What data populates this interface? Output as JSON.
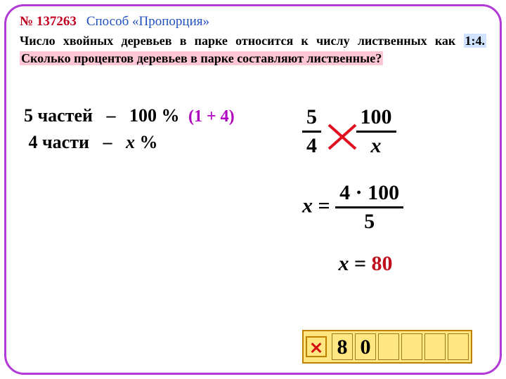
{
  "colors": {
    "frame": "#b23ad6",
    "number": "#c00020",
    "subtitle": "#2050c0",
    "hl_ratio_bg": "#cfe2ff",
    "hl_q_bg": "#ffc7d6",
    "note": "#b000c0",
    "answer_border": "#c08000",
    "answer_bg": "#ffe680",
    "cell_border": "#9a7a20",
    "x_red": "#d01010",
    "text": "#000000",
    "result": "#c01020",
    "cross": "#e01020"
  },
  "fontsize": {
    "header": 19,
    "problem": 18,
    "work": 26,
    "note": 24,
    "math": 30,
    "result": 30,
    "answer": 30
  },
  "header": {
    "number": "№ 137263",
    "subtitle": "Способ «Пропорция»"
  },
  "problem": {
    "p1": "Число хвойных деревьев в парке относится к числу лиственных как ",
    "ratio": "1:4.",
    "p2": " ",
    "question": "Сколько процентов деревьев в парке составляют лиственные?"
  },
  "work": {
    "row1_left": "5 частей",
    "row1_mid": "–",
    "row1_right": "100 %",
    "note": "(1 + 4)",
    "row2_left": "4 части",
    "row2_mid": "–",
    "row2_right_var": "x",
    "row2_right_unit": " %"
  },
  "math": {
    "prop": {
      "a": "5",
      "b": "4",
      "c": "100",
      "d_var": "x"
    },
    "step2_lhs_var": "x",
    "step2_eq": " = ",
    "step2_num": "4 · 100",
    "step2_den": "5",
    "result_var": "x",
    "result_eq": " = ",
    "result_val": "80"
  },
  "answer": {
    "cells": [
      "8",
      "0",
      "",
      "",
      "",
      ""
    ]
  }
}
